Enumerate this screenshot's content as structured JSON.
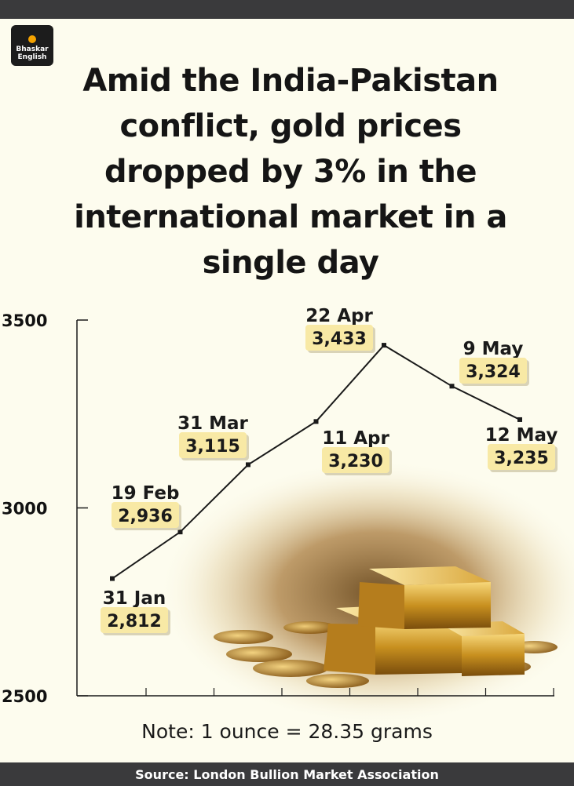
{
  "logo": {
    "line1": "Bhaskar",
    "line2": "English"
  },
  "headline": "Amid the India-Pakistan conflict, gold prices dropped by 3% in the international market in a single day",
  "note": "Note: 1 ounce = 28.35 grams",
  "source": "Source: London Bullion Market Association",
  "colors": {
    "bar": "#3a3a3c",
    "background": "#fdfcee",
    "label_box": "#f8e9a5",
    "line": "#1a1a1a"
  },
  "chart_data": {
    "type": "line",
    "title": "",
    "xlabel": "",
    "ylabel": "",
    "ylim": [
      2500,
      3500
    ],
    "yticks": [
      3500,
      3000,
      2500
    ],
    "ytick_labels": [
      "3500",
      "3000",
      "2500"
    ],
    "grid": false,
    "points": [
      {
        "date": "31 Jan",
        "value": 2812,
        "label": "2,812"
      },
      {
        "date": "19 Feb",
        "value": 2936,
        "label": "2,936"
      },
      {
        "date": "31 Mar",
        "value": 3115,
        "label": "3,115"
      },
      {
        "date": "11 Apr",
        "value": 3230,
        "label": "3,230"
      },
      {
        "date": "22 Apr",
        "value": 3433,
        "label": "3,433"
      },
      {
        "date": "9 May",
        "value": 3324,
        "label": "3,324"
      },
      {
        "date": "12 May",
        "value": 3235,
        "label": "3,235"
      }
    ]
  }
}
